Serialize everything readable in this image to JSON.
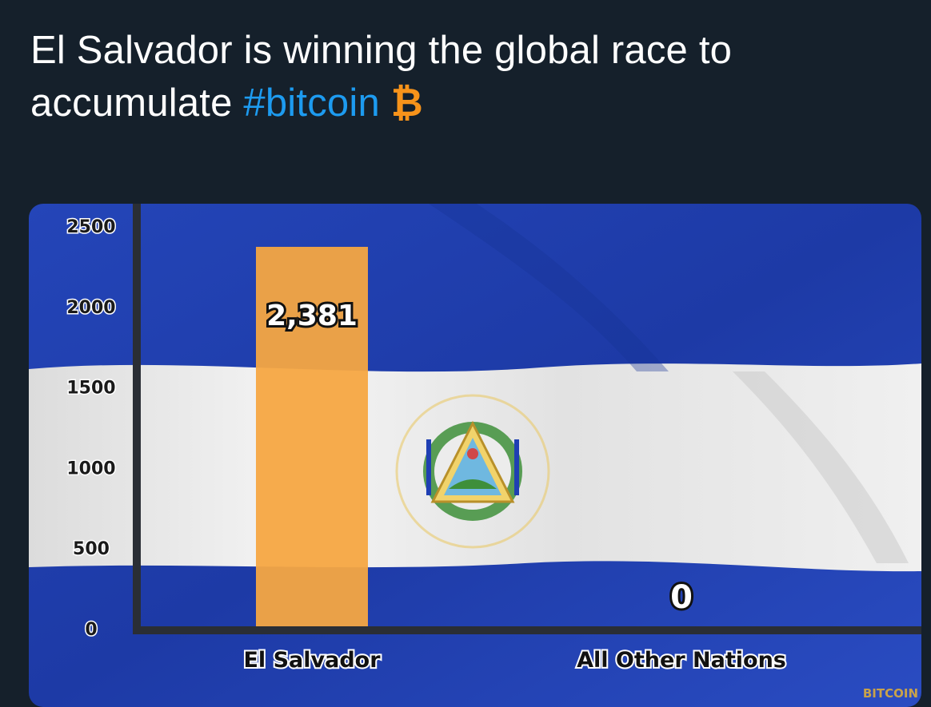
{
  "tweet": {
    "text_line1": "El Salvador is winning the global race to",
    "text_line2_prefix": "accumulate",
    "hashtag": "#bitcoin",
    "icon": "bitcoin-icon",
    "icon_glyph": "₿",
    "hashtag_color": "#1d9bf0",
    "icon_color": "#f7931a"
  },
  "watermark": {
    "label": "BITCOIN"
  },
  "chart_data": {
    "type": "bar",
    "categories": [
      "El Salvador",
      "All Other Nations"
    ],
    "values": [
      2381,
      0
    ],
    "value_labels": [
      "2,381",
      "0"
    ],
    "y_ticks": [
      0,
      500,
      1000,
      1500,
      2000,
      2500
    ],
    "ylim": [
      0,
      2500
    ],
    "grid": false,
    "bar_color": "#f5a742",
    "background": "El Salvador flag (blue-white-blue) with coat of arms",
    "colors": {
      "flag_blue": "#1f3fb3",
      "flag_white": "#ececec",
      "axis": "#2a2e35"
    }
  }
}
